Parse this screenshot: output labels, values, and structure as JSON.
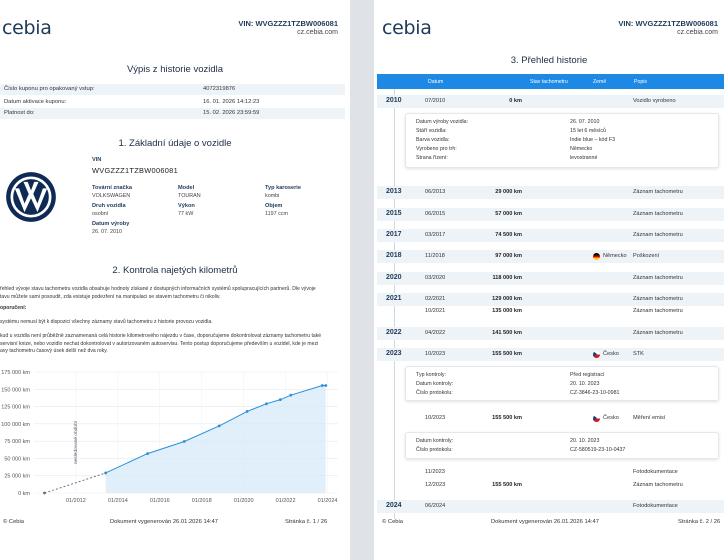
{
  "left_page": {
    "logo": "cebia",
    "vin_header": "VIN: WVGZZZ1TZBW006081",
    "site": "cz.cebia.com",
    "doc_title": "Výpis z historie vozidla",
    "coupon": [
      {
        "label": "Číslo kuponu pro opakovaný vstup:",
        "value": "4072319876"
      },
      {
        "label": "Datum aktivace kuponu:",
        "value": "16. 01. 2026 14:12:23"
      },
      {
        "label": "Platnost do:",
        "value": "15. 02. 2026 23:59:59"
      }
    ],
    "section1_title": "1. Základní údaje o vozidle",
    "vin_label": "VIN",
    "vin_value": "WVGZZZ1TZBW006081",
    "fields": {
      "brand_label": "Tovární značka",
      "brand": "VOLKSWAGEN",
      "model_label": "Model",
      "model": "TOURAN",
      "body_label": "Typ karoserie",
      "body": "kombi",
      "kind_label": "Druh vozidla",
      "kind": "osobní",
      "power_label": "Výkon",
      "power": "77 kW",
      "volume_label": "Objem",
      "volume": "1197 ccm",
      "date_label": "Datum výroby",
      "date": "26. 07. 2010"
    },
    "section2_title": "2. Kontrola najetých kilometrů",
    "para1a": "řehled vývoje stavu tachometru vozidla obsahuje hodnoty získané z dostupných informačních systémů spolupracujících partnerů. Dle vývoje",
    "para1b": "tavu můžete sami posoudit, zda existuje podezření na manipulaci se stavem tachometru či nikoliv.",
    "para2": "oporučení:",
    "para3": "systému nemusí být k dispozici všechny záznamy stavů tachometru z historie provozu vozidla.",
    "para4a": "kud u vozidla není průběžně zaznamenaná celá historie kilometrového nájezdu v čase, doporučujeme dokontrolovat záznamy tachometru také",
    "para4b": "servisní knize, nebo vozidlo nechat dokontrolovat v autorizovaném autoservisu. Tento postup doporučujeme především u vozidel, kde je mezi",
    "para4c": "avy tachometru časový úsek delší než dva roky.",
    "footer_left": "© Cebia",
    "footer_mid": "Dokument vygenerován 26.01.2026 14:47",
    "footer_right": "Stránka č. 1 / 26"
  },
  "chart_data": {
    "type": "line",
    "title": "",
    "xlabel": "",
    "ylabel": "",
    "ylim": [
      0,
      175000
    ],
    "y_ticks": [
      "0 km",
      "25 000 km",
      "50 000 km",
      "75 000 km",
      "100 000 km",
      "125 000 km",
      "150 000 km",
      "175 000 km"
    ],
    "x_ticks": [
      "01/2012",
      "01/2014",
      "01/2016",
      "01/2018",
      "01/2020",
      "01/2022",
      "01/2024"
    ],
    "annotation": "nesledované období",
    "series": [
      {
        "x": [
          "2010-07",
          "2013-06",
          "2015-06",
          "2017-03",
          "2018-11",
          "2020-03",
          "2021-02",
          "2021-10",
          "2022-04",
          "2023-10",
          "2023-12"
        ],
        "values": [
          0,
          29000,
          57000,
          74500,
          97000,
          118000,
          129000,
          135000,
          141500,
          155500,
          155500
        ]
      }
    ],
    "colors": {
      "line": "#2a8fd8",
      "fill": "#d7eaf8",
      "dashed": "#5a6b80"
    }
  },
  "right_page": {
    "logo": "cebia",
    "vin_header": "VIN: WVGZZZ1TZBW006081",
    "site": "cz.cebia.com",
    "section3_title": "3. Přehled historie",
    "headers": {
      "date": "Datum",
      "km": "Stav tachometru",
      "country": "Země",
      "desc": "Popis"
    },
    "rows": [
      {
        "year": "2010",
        "date": "07/2010",
        "km": "0 km",
        "country": "",
        "desc": "Vozidlo vyrobeno"
      },
      {
        "year": "2013",
        "date": "06/2013",
        "km": "29 000 km",
        "country": "",
        "desc": "Záznam tachometru"
      },
      {
        "year": "2015",
        "date": "06/2015",
        "km": "57 000 km",
        "country": "",
        "desc": "Záznam tachometru"
      },
      {
        "year": "2017",
        "date": "03/2017",
        "km": "74 500 km",
        "country": "",
        "desc": "Záznam tachometru"
      },
      {
        "year": "2018",
        "date": "11/2018",
        "km": "97 000 km",
        "country": "Německo",
        "desc": "Poškození"
      },
      {
        "year": "2020",
        "date": "03/2020",
        "km": "118 000 km",
        "country": "",
        "desc": "Záznam tachometru"
      },
      {
        "year": "2021",
        "date": "02/2021",
        "km": "129 000 km",
        "country": "",
        "desc": "Záznam tachometru"
      },
      {
        "year": "",
        "date": "10/2021",
        "km": "135 000 km",
        "country": "",
        "desc": "Záznam tachometru"
      },
      {
        "year": "2022",
        "date": "04/2022",
        "km": "141 500 km",
        "country": "",
        "desc": "Záznam tachometru"
      },
      {
        "year": "2023",
        "date": "10/2023",
        "km": "155 500 km",
        "country": "Česko",
        "desc": "STK"
      },
      {
        "year": "",
        "date": "10/2023",
        "km": "155 500 km",
        "country": "Česko",
        "desc": "Měření emisí"
      },
      {
        "year": "",
        "date": "11/2023",
        "km": "",
        "country": "",
        "desc": "Fotodokumentace"
      },
      {
        "year": "",
        "date": "12/2023",
        "km": "155 500 km",
        "country": "",
        "desc": "Záznam tachometru"
      },
      {
        "year": "2024",
        "date": "06/2024",
        "km": "",
        "country": "",
        "desc": "Fotodokumentace"
      }
    ],
    "detail_manufacture": [
      {
        "label": "Datum výroby vozidla:",
        "value": "26. 07. 2010"
      },
      {
        "label": "Stáří vozidla:",
        "value": "15 let 6 měsíců"
      },
      {
        "label": "Barva vozidla:",
        "value": "Indie blue – kód F3"
      },
      {
        "label": "Vyrobeno pro trh:",
        "value": "Německo"
      },
      {
        "label": "Strana řízení:",
        "value": "levostranné"
      }
    ],
    "detail_stk": [
      {
        "label": "Typ kontroly:",
        "value": "Před registrací"
      },
      {
        "label": "Datum kontroly:",
        "value": "20. 10. 2023"
      },
      {
        "label": "Číslo protokolu:",
        "value": "CZ-3846-23-10-0981"
      }
    ],
    "detail_emise": [
      {
        "label": "Datum kontroly:",
        "value": "20. 10. 2023"
      },
      {
        "label": "Číslo protokolu:",
        "value": "CZ-580519-23-10-0437"
      }
    ],
    "footer_left": "© Cebia",
    "footer_mid": "Dokument vygenerován 26.01.2026 14:47",
    "footer_right": "Stránka č. 2 / 26"
  }
}
